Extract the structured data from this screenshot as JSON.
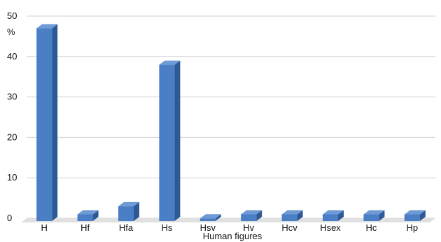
{
  "chart_data": {
    "type": "bar",
    "style": "3d-column",
    "categories": [
      "H",
      "Hf",
      "Hfa",
      "Hs",
      "Hsv",
      "Hv",
      "Hcv",
      "Hsex",
      "Hc",
      "Hp"
    ],
    "values": [
      48,
      2,
      4,
      39,
      1,
      2,
      2,
      2,
      2,
      2
    ],
    "xlabel": "Human figures",
    "ylabel": "%",
    "ylim": [
      0,
      50
    ],
    "yticks": [
      0,
      10,
      20,
      30,
      40,
      50
    ],
    "grid": true,
    "legend": "none",
    "colors": {
      "bar_front": "#4a7fc6",
      "bar_side": "#2d5a96",
      "bar_top": "#6e9ad6",
      "grid": "#d0d0d0",
      "floor": "#e0e0e0",
      "text": "#111111"
    }
  }
}
